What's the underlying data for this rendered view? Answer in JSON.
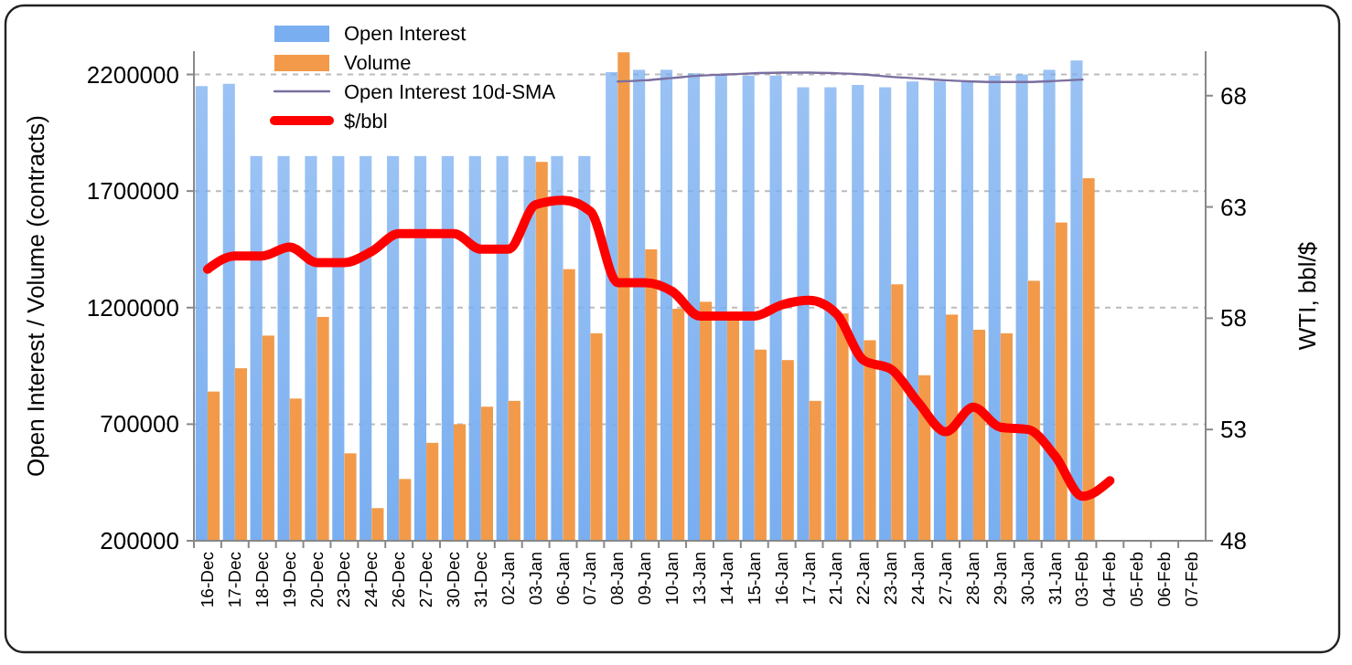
{
  "chart_data": {
    "type": "bar",
    "ylabel": "Open Interest / Volume (contracts)",
    "y2label": "WTI, bbl/$",
    "categories": [
      "16-Dec",
      "17-Dec",
      "18-Dec",
      "19-Dec",
      "20-Dec",
      "23-Dec",
      "24-Dec",
      "26-Dec",
      "27-Dec",
      "30-Dec",
      "31-Dec",
      "02-Jan",
      "03-Jan",
      "06-Jan",
      "07-Jan",
      "08-Jan",
      "09-Jan",
      "10-Jan",
      "13-Jan",
      "14-Jan",
      "15-Jan",
      "16-Jan",
      "17-Jan",
      "21-Jan",
      "22-Jan",
      "23-Jan",
      "24-Jan",
      "27-Jan",
      "28-Jan",
      "29-Jan",
      "30-Jan",
      "31-Jan",
      "03-Feb",
      "04-Feb",
      "05-Feb",
      "06-Feb",
      "07-Feb"
    ],
    "series": [
      {
        "name": "Open Interest",
        "color": "#79aef0",
        "values": [
          2150000,
          2160000,
          1850000,
          1850000,
          1850000,
          1850000,
          1850000,
          1850000,
          1850000,
          1850000,
          1850000,
          1850000,
          1850000,
          1850000,
          1850000,
          2210000,
          2220000,
          2220000,
          2205000,
          2200000,
          2195000,
          2195000,
          2145000,
          2145000,
          2155000,
          2145000,
          2170000,
          2170000,
          2170000,
          2195000,
          2200000,
          2220000,
          2260000,
          null,
          null,
          null,
          null
        ]
      },
      {
        "name": "Volume",
        "color": "#f29a4a",
        "values": [
          840000,
          940000,
          1080000,
          810000,
          1160000,
          575000,
          340000,
          465000,
          620000,
          700000,
          775000,
          800000,
          1825000,
          1365000,
          1090000,
          2295000,
          1450000,
          1195000,
          1225000,
          1160000,
          1020000,
          975000,
          800000,
          1175000,
          1060000,
          1300000,
          910000,
          1170000,
          1105000,
          1090000,
          1315000,
          1565000,
          1755000,
          null,
          null,
          null,
          null
        ]
      },
      {
        "name": "Open Interest 10d-SMA",
        "type": "line",
        "color": "#7b6fa0",
        "values": [
          null,
          null,
          null,
          null,
          null,
          null,
          null,
          null,
          null,
          null,
          null,
          null,
          null,
          null,
          null,
          2170000,
          2175000,
          2185000,
          2195000,
          2200000,
          2205000,
          2208000,
          2208000,
          2205000,
          2200000,
          2190000,
          2183000,
          2175000,
          2170000,
          2168000,
          2168000,
          2172000,
          2178000,
          null,
          null,
          null,
          null
        ]
      },
      {
        "name": "$/bbl",
        "type": "line",
        "axis": "y2",
        "color": "#ff0000",
        "values": [
          60.2,
          60.8,
          60.8,
          61.2,
          60.5,
          60.5,
          61.0,
          61.8,
          61.8,
          61.8,
          61.1,
          61.1,
          63.1,
          63.3,
          62.8,
          59.6,
          59.6,
          59.2,
          58.1,
          58.1,
          58.1,
          58.6,
          58.8,
          58.2,
          56.1,
          55.7,
          54.2,
          52.9,
          54.0,
          53.1,
          53.0,
          51.8,
          50.0,
          50.7,
          null,
          null,
          null
        ]
      }
    ],
    "ylim": [
      200000,
      2300000
    ],
    "yticks": [
      200000,
      700000,
      1200000,
      1700000,
      2200000
    ],
    "y2lim": [
      48,
      70
    ],
    "y2ticks": [
      48,
      53,
      58,
      63,
      68
    ],
    "grid": "y",
    "legend": "top left"
  }
}
